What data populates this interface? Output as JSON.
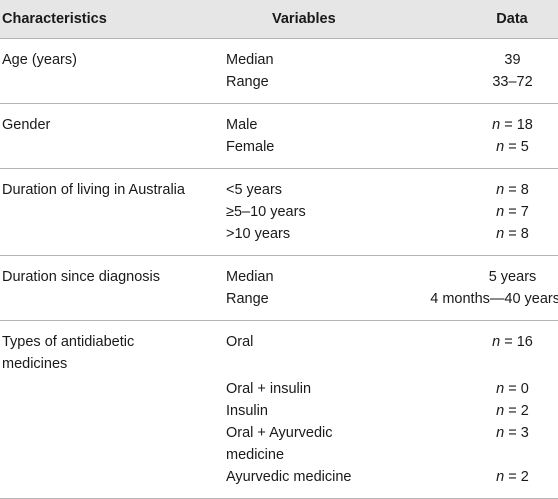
{
  "headers": {
    "characteristics": "Characteristics",
    "variables": "Variables",
    "data": "Data"
  },
  "rows": [
    {
      "characteristic": "Age (years)",
      "items": [
        {
          "variable": "Median",
          "n_prefix": "",
          "value": "39"
        },
        {
          "variable": "Range",
          "n_prefix": "",
          "value": "33–72"
        }
      ]
    },
    {
      "characteristic": "Gender",
      "items": [
        {
          "variable": "Male",
          "n_prefix": "n",
          "value": " = 18"
        },
        {
          "variable": "Female",
          "n_prefix": "n",
          "value": " = 5"
        }
      ]
    },
    {
      "characteristic": "Duration of living in Australia",
      "items": [
        {
          "variable": "<5 years",
          "n_prefix": "n",
          "value": " = 8"
        },
        {
          "variable": "≥5–10 years",
          "n_prefix": "n",
          "value": " = 7"
        },
        {
          "variable": ">10 years",
          "n_prefix": "n",
          "value": " = 8"
        }
      ]
    },
    {
      "characteristic": "Duration since diagnosis",
      "items": [
        {
          "variable": "Median",
          "n_prefix": "",
          "value": "5 years"
        },
        {
          "variable": "Range",
          "n_prefix": "",
          "value": "4 months—40 years"
        }
      ]
    },
    {
      "characteristic": "Types of antidiabetic medicines",
      "items": [
        {
          "variable": "Oral",
          "n_prefix": "n",
          "value": " = 16"
        },
        {
          "variable": "Oral + insulin",
          "n_prefix": "n",
          "value": " = 0"
        },
        {
          "variable": "Insulin",
          "n_prefix": "n",
          "value": " = 2"
        },
        {
          "variable": "Oral + Ayurvedic medicine",
          "n_prefix": "n",
          "value": " = 3"
        },
        {
          "variable": "Ayurvedic medicine",
          "n_prefix": "n",
          "value": " = 2"
        }
      ]
    }
  ]
}
